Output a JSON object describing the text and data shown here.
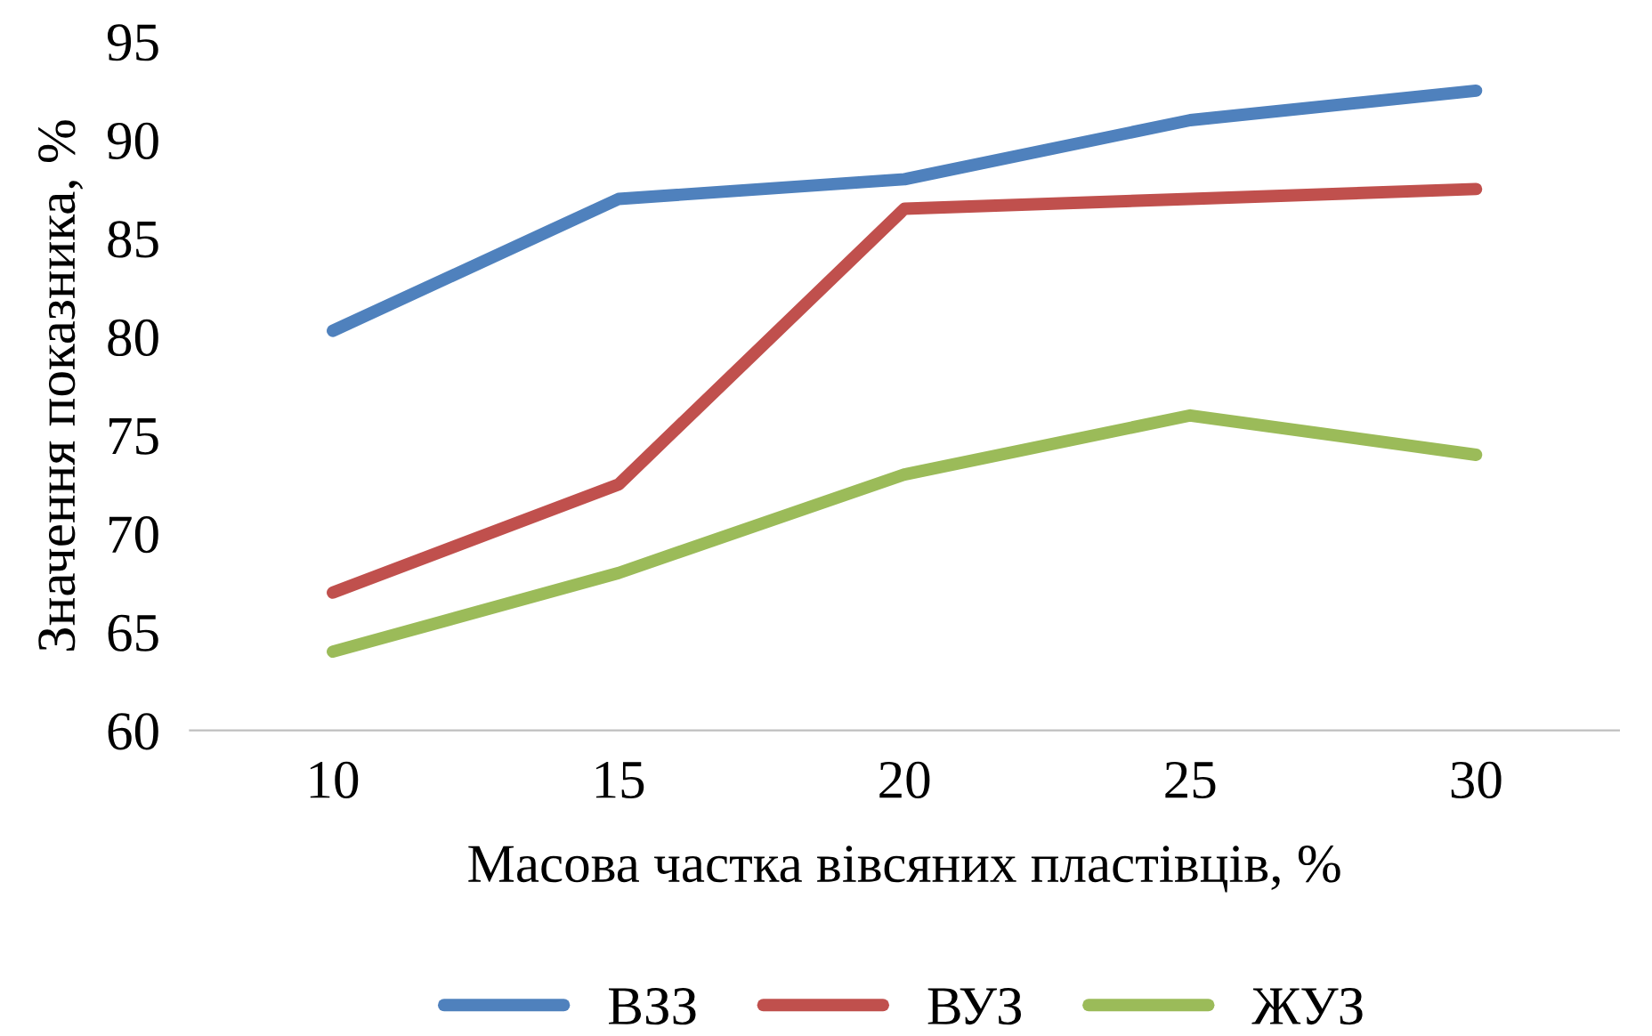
{
  "chart_data": {
    "type": "line",
    "xlabel": "Масова частка вівсяних пластівців, %",
    "ylabel": "Значення показника, %",
    "categories": [
      "10",
      "15",
      "20",
      "25",
      "30"
    ],
    "series": [
      {
        "name": "ВЗЗ",
        "color": "#4f81bd",
        "values": [
          80.3,
          87,
          88,
          91,
          92.5
        ]
      },
      {
        "name": "ВУЗ",
        "color": "#c0504d",
        "values": [
          67,
          72.5,
          86.5,
          87,
          87.5
        ]
      },
      {
        "name": "ЖУЗ",
        "color": "#9bbb59",
        "values": [
          64,
          68,
          73,
          76,
          74
        ]
      }
    ],
    "ylim": [
      60,
      95
    ],
    "yticks": [
      60,
      65,
      70,
      75,
      80,
      85,
      90,
      95
    ],
    "grid": false,
    "legend": "bottom",
    "marker": "none",
    "line_style": "solid"
  }
}
